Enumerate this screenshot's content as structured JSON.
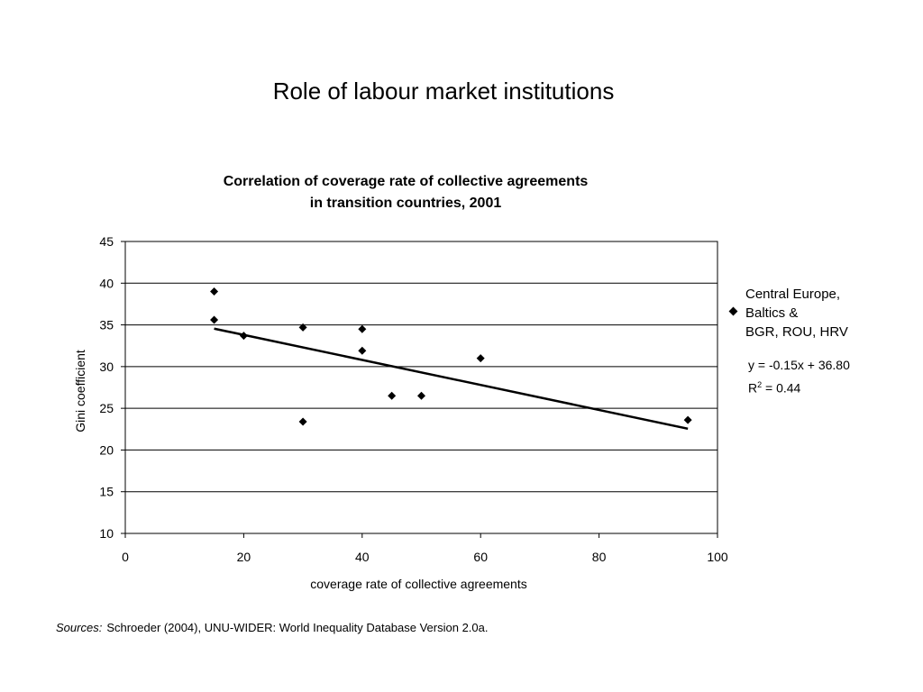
{
  "slide": {
    "title": "Role of labour market institutions"
  },
  "chart_data": {
    "type": "scatter",
    "title_lines": [
      "Correlation of coverage rate of collective agreements",
      "in transition countries, 2001"
    ],
    "xlabel": "coverage rate of collective agreements",
    "ylabel": "Gini coefficient",
    "xlim": [
      0,
      100
    ],
    "ylim": [
      10,
      45
    ],
    "x_ticks": [
      0,
      20,
      40,
      60,
      80,
      100
    ],
    "y_ticks": [
      10,
      15,
      20,
      25,
      30,
      35,
      40,
      45
    ],
    "grid": "horizontal",
    "legend_position": "right",
    "series": [
      {
        "name": "Central Europe, Baltics & BGR, ROU, HRV",
        "marker": "diamond",
        "color": "#000000",
        "points": [
          {
            "x": 15,
            "y": 39.0
          },
          {
            "x": 15,
            "y": 35.6
          },
          {
            "x": 20,
            "y": 33.7
          },
          {
            "x": 30,
            "y": 34.7
          },
          {
            "x": 30,
            "y": 23.4
          },
          {
            "x": 40,
            "y": 34.5
          },
          {
            "x": 40,
            "y": 31.9
          },
          {
            "x": 45,
            "y": 26.5
          },
          {
            "x": 50,
            "y": 26.5
          },
          {
            "x": 60,
            "y": 31.0
          },
          {
            "x": 95,
            "y": 23.6
          }
        ]
      }
    ],
    "trendline": {
      "x_start": 15,
      "x_end": 95,
      "slope": -0.15,
      "intercept": 36.8,
      "equation": "y = -0.15x + 36.80",
      "r2_prefix": "R",
      "r2_sup": "2",
      "r2_value": " = 0.44"
    },
    "legend_lines": [
      "Central Europe,",
      "Baltics &",
      "BGR, ROU, HRV"
    ]
  },
  "sources": {
    "label": "Sources:",
    "text": "Schroeder (2004), UNU-WIDER: World Inequality Database Version 2.0a."
  }
}
